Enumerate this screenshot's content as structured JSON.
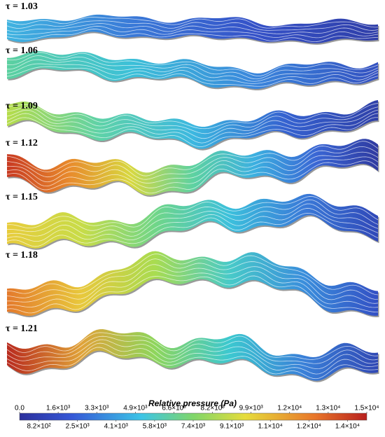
{
  "panels": [
    {
      "label": "τ = 1.03"
    },
    {
      "label": "τ = 1.06"
    },
    {
      "label": "τ = 1.09"
    },
    {
      "label": "τ = 1.12"
    },
    {
      "label": "τ = 1.15"
    },
    {
      "label": "τ = 1.18"
    },
    {
      "label": "τ = 1.21"
    }
  ],
  "colorbar": {
    "title": "Relative pressure (Pa)",
    "top_labels": [
      "0.0",
      "1.6×10³",
      "3.3×10³",
      "4.9×10³",
      "6.6×10³",
      "8.2×10³",
      "9.9×10³",
      "1.2×10⁴",
      "1.3×10⁴",
      "1.5×10⁴"
    ],
    "bottom_labels": [
      "8.2×10²",
      "2.5×10³",
      "4.1×10³",
      "5.8×10³",
      "7.4×10³",
      "9.1×10³",
      "1.1×10⁴",
      "1.2×10⁴",
      "1.4×10⁴"
    ]
  }
}
